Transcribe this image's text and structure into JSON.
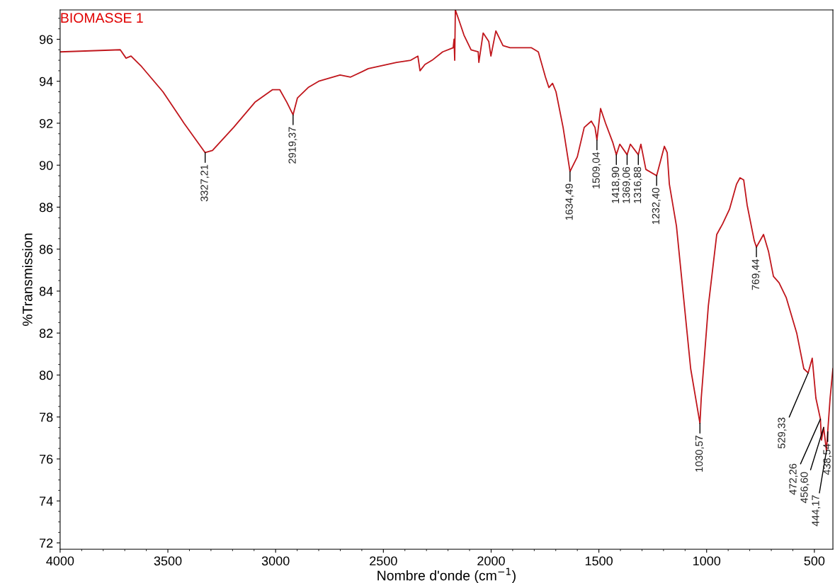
{
  "chart_data": {
    "type": "line",
    "title": "BIOMASSE 1",
    "xlabel": "Nombre d'onde (cm$^{−1}$)",
    "ylabel": "%Transmission",
    "xlim": [
      4000,
      414
    ],
    "ylim": [
      71.7,
      97.4
    ],
    "xticks": [
      4000,
      3500,
      3000,
      2500,
      2000,
      1500,
      1000,
      500
    ],
    "yticks": [
      72,
      74,
      76,
      78,
      80,
      82,
      84,
      86,
      88,
      90,
      92,
      94,
      96
    ],
    "grid": false,
    "marker": "none",
    "line_style": "solid",
    "series": [
      {
        "color": "#c0161c",
        "x": [
          4000,
          3721,
          3694,
          3671,
          3622,
          3523,
          3425,
          3327,
          3293,
          3195,
          3096,
          3014,
          2981,
          2948,
          2919,
          2899,
          2849,
          2800,
          2701,
          2652,
          2570,
          2439,
          2373,
          2340,
          2330,
          2307,
          2274,
          2225,
          2176,
          2172,
          2169,
          2166,
          2149,
          2126,
          2093,
          2060,
          2057,
          2037,
          2011,
          2001,
          1978,
          1945,
          1912,
          1814,
          1781,
          1748,
          1732,
          1715,
          1699,
          1666,
          1634,
          1600,
          1568,
          1535,
          1518,
          1509,
          1492,
          1469,
          1436,
          1419,
          1403,
          1369,
          1354,
          1317,
          1305,
          1282,
          1232,
          1196,
          1183,
          1173,
          1140,
          1107,
          1074,
          1031,
          1025,
          992,
          953,
          926,
          894,
          861,
          845,
          828,
          812,
          779,
          769,
          736,
          713,
          690,
          664,
          631,
          582,
          549,
          529,
          510,
          493,
          472,
          467,
          457,
          444,
          438,
          427,
          414
        ],
        "values": [
          95.4,
          95.5,
          95.1,
          95.2,
          94.7,
          93.5,
          92.0,
          90.6,
          90.7,
          91.8,
          93.0,
          93.6,
          93.6,
          93.0,
          92.4,
          93.2,
          93.7,
          94.0,
          94.3,
          94.2,
          94.6,
          94.9,
          95.0,
          95.2,
          94.5,
          94.8,
          95.0,
          95.4,
          95.6,
          96.0,
          95.0,
          97.4,
          96.9,
          96.2,
          95.5,
          95.4,
          94.9,
          96.3,
          95.9,
          95.2,
          96.4,
          95.7,
          95.6,
          95.6,
          95.4,
          94.2,
          93.7,
          93.9,
          93.5,
          91.8,
          89.7,
          90.4,
          91.8,
          92.1,
          91.8,
          91.2,
          92.7,
          92.0,
          91.1,
          90.5,
          91.0,
          90.5,
          91.0,
          90.5,
          91.0,
          89.8,
          89.5,
          90.9,
          90.6,
          89.1,
          87.1,
          83.7,
          80.3,
          77.7,
          78.9,
          83.3,
          86.7,
          87.2,
          87.9,
          89.1,
          89.4,
          89.3,
          88.1,
          86.4,
          86.1,
          86.7,
          85.9,
          84.7,
          84.4,
          83.7,
          82.0,
          80.3,
          80.1,
          80.8,
          78.9,
          77.9,
          76.9,
          77.5,
          76.4,
          77.3,
          78.9,
          80.3
        ]
      }
    ],
    "annotations": [
      {
        "text": "3327,21",
        "x": 3327,
        "y": 90.6
      },
      {
        "text": "2919,37",
        "x": 2919,
        "y": 92.4
      },
      {
        "text": "1634,49",
        "x": 1634,
        "y": 89.7
      },
      {
        "text": "1509,04",
        "x": 1509,
        "y": 91.2
      },
      {
        "text": "1418,90",
        "x": 1419,
        "y": 90.5
      },
      {
        "text": "1369,06",
        "x": 1369,
        "y": 90.5
      },
      {
        "text": "1316,88",
        "x": 1317,
        "y": 90.5
      },
      {
        "text": "1232,40",
        "x": 1232,
        "y": 89.5
      },
      {
        "text": "1030,57",
        "x": 1031,
        "y": 77.7
      },
      {
        "text": "769,44",
        "x": 769,
        "y": 86.1
      },
      {
        "text": "529,33",
        "x": 529,
        "y": 80.1
      },
      {
        "text": "472,26",
        "x": 472,
        "y": 77.9
      },
      {
        "text": "456,60",
        "x": 457,
        "y": 77.5
      },
      {
        "text": "444,17",
        "x": 444,
        "y": 76.4
      },
      {
        "text": "438,54",
        "x": 438,
        "y": 77.3
      }
    ]
  }
}
